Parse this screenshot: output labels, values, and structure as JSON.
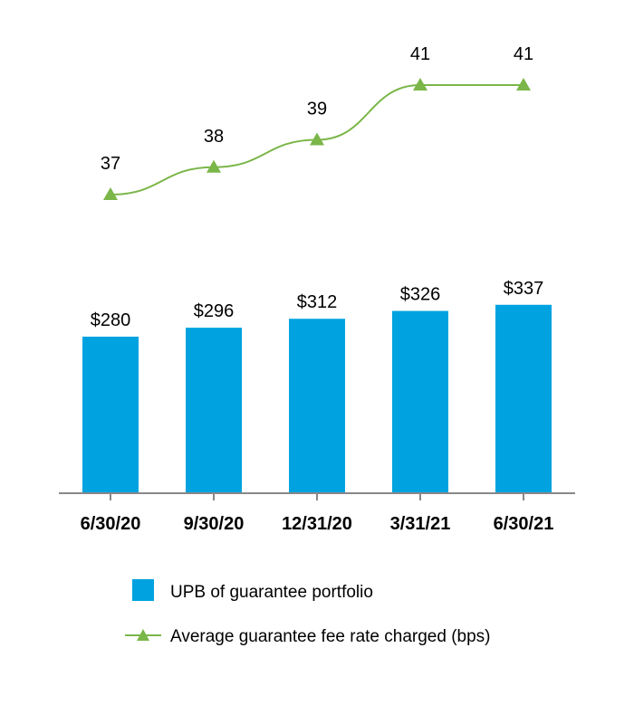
{
  "chart_data": {
    "type": "bar",
    "categories": [
      "6/30/20",
      "9/30/20",
      "12/31/20",
      "3/31/21",
      "6/30/21"
    ],
    "series": [
      {
        "name": "UPB of guarantee portfolio",
        "type": "bar",
        "values": [
          280,
          296,
          312,
          326,
          337
        ],
        "value_labels": [
          "$280",
          "$296",
          "$312",
          "$326",
          "$337"
        ],
        "color": "#00A3E0"
      },
      {
        "name": "Average guarantee fee rate charged (bps)",
        "type": "line",
        "values": [
          37,
          38,
          39,
          41,
          41
        ],
        "value_labels": [
          "37",
          "38",
          "39",
          "41",
          "41"
        ],
        "color": "#7AB648",
        "marker": "triangle"
      }
    ],
    "legend_position": "bottom",
    "grid": false,
    "axis_color": "#888888"
  }
}
